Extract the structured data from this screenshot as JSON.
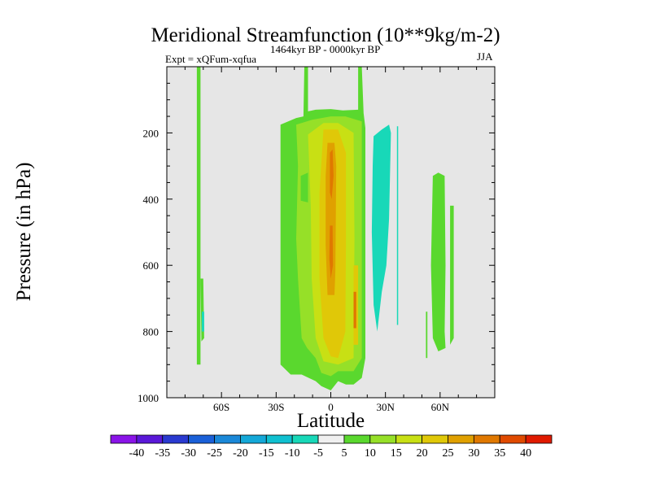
{
  "chart_data": {
    "type": "contour",
    "title": "Meridional Streamfunction (10**9kg/m-2)",
    "subtitle_left": "Expt = xQFum-xqfua",
    "subtitle_center": "1464kyr BP - 0000kyr BP",
    "subtitle_right": "JJA",
    "xlabel": "Latitude",
    "ylabel": "Pressure (in hPa)",
    "xlim": [
      -90,
      90
    ],
    "ylim": [
      1000,
      0
    ],
    "x_ticks": [
      {
        "value": -60,
        "label": "60S"
      },
      {
        "value": -30,
        "label": "30S"
      },
      {
        "value": 0,
        "label": "0"
      },
      {
        "value": 30,
        "label": "30N"
      },
      {
        "value": 60,
        "label": "60N"
      }
    ],
    "y_ticks": [
      {
        "value": 200,
        "label": "200"
      },
      {
        "value": 400,
        "label": "400"
      },
      {
        "value": 600,
        "label": "600"
      },
      {
        "value": 800,
        "label": "800"
      },
      {
        "value": 1000,
        "label": "1000"
      }
    ],
    "background_color": "#e6e6e6",
    "contour_levels": [
      -40,
      -35,
      -30,
      -25,
      -20,
      -15,
      -10,
      -5,
      5,
      10,
      15,
      20,
      25,
      30,
      35,
      40
    ],
    "colorbar_colors": [
      "#8a14e8",
      "#5a18d8",
      "#2a3ad0",
      "#1a60d8",
      "#1a88d8",
      "#14a8d8",
      "#10c0d0",
      "#18d8b8",
      "#f0f0f0",
      "#5ad82e",
      "#96e028",
      "#c8e014",
      "#e0c808",
      "#e0a000",
      "#e07800",
      "#e04a00",
      "#e01a00"
    ],
    "contour_regions": [
      {
        "level": 5,
        "color": "#5ad82e",
        "points": [
          [
            -73.5,
            0
          ],
          [
            -71.5,
            0
          ],
          [
            -71.5,
            900
          ],
          [
            -73.5,
            900
          ]
        ]
      },
      {
        "level": 5,
        "color": "#5ad82e",
        "points": [
          [
            -71.5,
            640
          ],
          [
            -70,
            640
          ],
          [
            -69.5,
            820
          ],
          [
            -71,
            830
          ]
        ]
      },
      {
        "level": 5,
        "color": "#5ad82e",
        "points": [
          [
            -27.6,
            175
          ],
          [
            -19,
            155
          ],
          [
            -15,
            150
          ],
          [
            -14.5,
            0
          ],
          [
            -12.5,
            0
          ],
          [
            -12.5,
            135
          ],
          [
            -8.3,
            130
          ],
          [
            0,
            128
          ],
          [
            6.6,
            132
          ],
          [
            15,
            130
          ],
          [
            15,
            0
          ],
          [
            17,
            0
          ],
          [
            18,
            140
          ],
          [
            19,
            185
          ],
          [
            19,
            880
          ],
          [
            17,
            940
          ],
          [
            12.5,
            960
          ],
          [
            8.3,
            960
          ],
          [
            4,
            950
          ],
          [
            0,
            978
          ],
          [
            -5.2,
            965
          ],
          [
            -8.3,
            950
          ],
          [
            -16,
            930
          ],
          [
            -22,
            930
          ],
          [
            -27.6,
            900
          ]
        ]
      },
      {
        "level": 10,
        "color": "#96e028",
        "points": [
          [
            -19,
            175
          ],
          [
            -10,
            160
          ],
          [
            0,
            150
          ],
          [
            8,
            150
          ],
          [
            17,
            165
          ],
          [
            17,
            880
          ],
          [
            12.5,
            920
          ],
          [
            4,
            920
          ],
          [
            0,
            935
          ],
          [
            -5.2,
            925
          ],
          [
            -8.3,
            880
          ],
          [
            -13,
            850
          ],
          [
            -16,
            820
          ],
          [
            -18,
            640
          ],
          [
            -19,
            520
          ],
          [
            -18,
            300
          ]
        ]
      },
      {
        "level": 10,
        "color": "#5ad82e",
        "points": [
          [
            -16.5,
            330
          ],
          [
            -12.5,
            320
          ],
          [
            -12.5,
            410
          ],
          [
            -16.5,
            405
          ]
        ]
      },
      {
        "level": 15,
        "color": "#c8e014",
        "points": [
          [
            -12.5,
            205
          ],
          [
            -4,
            170
          ],
          [
            4,
            170
          ],
          [
            12.5,
            200
          ],
          [
            13,
            520
          ],
          [
            12.5,
            880
          ],
          [
            4,
            900
          ],
          [
            -4,
            890
          ],
          [
            -8.3,
            820
          ],
          [
            -10.5,
            640
          ],
          [
            -11,
            420
          ]
        ]
      },
      {
        "level": 20,
        "color": "#e0c808",
        "points": [
          [
            -4,
            190
          ],
          [
            4,
            190
          ],
          [
            8.3,
            260
          ],
          [
            8.3,
            540
          ],
          [
            8,
            800
          ],
          [
            4,
            880
          ],
          [
            0,
            875
          ],
          [
            -4,
            820
          ],
          [
            -6.2,
            640
          ],
          [
            -6.2,
            380
          ]
        ]
      },
      {
        "level": 25,
        "color": "#e0a000",
        "points": [
          [
            -1.8,
            230
          ],
          [
            2,
            230
          ],
          [
            3,
            300
          ],
          [
            2.5,
            620
          ],
          [
            2,
            690
          ],
          [
            -1.8,
            690
          ],
          [
            -2.8,
            540
          ],
          [
            -2.8,
            330
          ]
        ]
      },
      {
        "level": 30,
        "color": "#e07800",
        "points": [
          [
            -0.5,
            260
          ],
          [
            1,
            250
          ],
          [
            1.5,
            330
          ],
          [
            0.5,
            400
          ],
          [
            -0.5,
            380
          ]
        ]
      },
      {
        "level": 30,
        "color": "#e07800",
        "points": [
          [
            -0.5,
            480
          ],
          [
            1,
            480
          ],
          [
            1.2,
            600
          ],
          [
            0,
            640
          ],
          [
            -0.8,
            580
          ]
        ]
      },
      {
        "level": 20,
        "color": "#e0c808",
        "points": [
          [
            12.5,
            600
          ],
          [
            15,
            600
          ],
          [
            15,
            840
          ],
          [
            12.5,
            840
          ]
        ]
      },
      {
        "level": 30,
        "color": "#e07800",
        "points": [
          [
            12.5,
            680
          ],
          [
            14,
            680
          ],
          [
            14,
            790
          ],
          [
            12.5,
            790
          ]
        ]
      },
      {
        "level": -5,
        "color": "#18d8b8",
        "points": [
          [
            23.5,
            210
          ],
          [
            28,
            190
          ],
          [
            32,
            175
          ],
          [
            33,
            200
          ],
          [
            32,
            460
          ],
          [
            30.5,
            600
          ],
          [
            28,
            680
          ],
          [
            25.5,
            800
          ],
          [
            23.5,
            720
          ],
          [
            22.5,
            500
          ],
          [
            23,
            300
          ]
        ]
      },
      {
        "level": -5,
        "color": "#18d8b8",
        "points": [
          [
            36.3,
            180
          ],
          [
            37,
            180
          ],
          [
            37,
            780
          ],
          [
            36.3,
            780
          ]
        ]
      },
      {
        "level": -5,
        "color": "#18d8b8",
        "points": [
          [
            -70.8,
            740
          ],
          [
            -69.5,
            740
          ],
          [
            -69.5,
            800
          ],
          [
            -70.8,
            800
          ]
        ]
      },
      {
        "level": 5,
        "color": "#5ad82e",
        "points": [
          [
            56,
            330
          ],
          [
            59,
            320
          ],
          [
            62.5,
            330
          ],
          [
            63,
            600
          ],
          [
            62.5,
            800
          ],
          [
            63,
            850
          ],
          [
            59,
            860
          ],
          [
            56,
            820
          ],
          [
            55,
            600
          ]
        ]
      },
      {
        "level": 5,
        "color": "#5ad82e",
        "points": [
          [
            65.5,
            420
          ],
          [
            67.5,
            420
          ],
          [
            67.5,
            820
          ],
          [
            65.5,
            840
          ]
        ]
      },
      {
        "level": 5,
        "color": "#5ad82e",
        "points": [
          [
            52.2,
            740
          ],
          [
            53,
            740
          ],
          [
            53,
            880
          ],
          [
            52.2,
            880
          ]
        ]
      }
    ]
  }
}
